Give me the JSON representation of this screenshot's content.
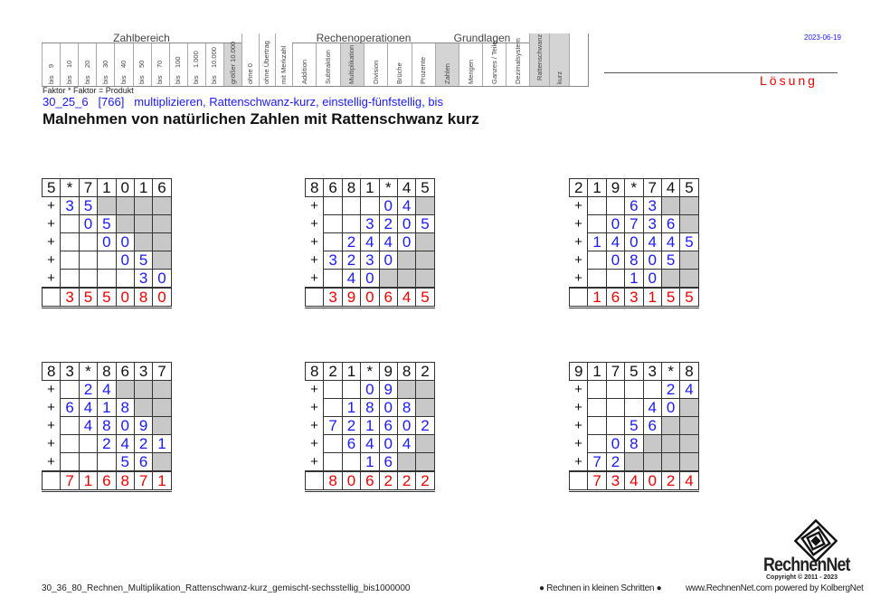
{
  "header": {
    "groups": {
      "zahlbereich": "Zahlbereich",
      "rechenoperationen": "Rechenoperationen",
      "grundlagen": "Grundlagen"
    },
    "zahlbereich": [
      {
        "top": "9",
        "bottom": "bis"
      },
      {
        "top": "10",
        "bottom": "bis"
      },
      {
        "top": "20",
        "bottom": "bis"
      },
      {
        "top": "30",
        "bottom": "bis"
      },
      {
        "top": "40",
        "bottom": "bis"
      },
      {
        "top": "50",
        "bottom": "bis"
      },
      {
        "top": "70",
        "bottom": "bis"
      },
      {
        "top": "100",
        "bottom": "bis"
      },
      {
        "top": "1.000",
        "bottom": "bis"
      },
      {
        "top": "10.000",
        "bottom": "bis"
      },
      {
        "top": "",
        "bottom": "größer 10.000",
        "active": true
      }
    ],
    "extras": [
      "ohne 0",
      "ohne Übertrag",
      "mit Merkzahl"
    ],
    "rechenoperationen": [
      {
        "label": "Addition"
      },
      {
        "label": "Subtraktion"
      },
      {
        "label": "Multiplikation",
        "active": true
      },
      {
        "label": "Division"
      },
      {
        "label": "Brüche"
      },
      {
        "label": "Prozente"
      }
    ],
    "grundlagen": [
      {
        "label": "Zahlen",
        "active": true
      },
      {
        "label": "Mengen"
      },
      {
        "label": "Ganzes / Teile"
      },
      {
        "label": "Dezimalsystem"
      }
    ],
    "special": [
      {
        "label": "Rattenschwanz",
        "active": true
      },
      {
        "label": "kurz",
        "active": true
      },
      {
        "label": ""
      }
    ],
    "formula": "Faktor * Faktor = Produkt",
    "date": "2023-06-19",
    "solution_label": "Lösung"
  },
  "subtitle": "30_25_6   [766]   multiplizieren, Rattenschwanz-kurz, einstellig-fünfstellig, bis",
  "title": "Malnehmen von natürlichen Zahlen mit Rattenschwanz kurz",
  "colors": {
    "blue": "#1a1aff",
    "red": "#e00000",
    "gray": "#c8c8c8"
  },
  "grids": [
    {
      "top": [
        "5",
        "*",
        "7",
        "1",
        "0",
        "1",
        "6"
      ],
      "rows": [
        [
          "3",
          "5",
          "#",
          "#",
          "#",
          "#"
        ],
        [
          "",
          "0",
          "5",
          "#",
          "#",
          "#"
        ],
        [
          "",
          "",
          "0",
          "0",
          "#",
          "#"
        ],
        [
          "",
          "",
          "",
          "0",
          "5",
          "#"
        ],
        [
          "",
          "",
          "",
          "",
          "3",
          "0"
        ]
      ],
      "result": [
        "3",
        "5",
        "5",
        "0",
        "8",
        "0"
      ]
    },
    {
      "top": [
        "8",
        "6",
        "8",
        "1",
        "*",
        "4",
        "5"
      ],
      "rows": [
        [
          "",
          "",
          "",
          "0",
          "4",
          "#"
        ],
        [
          "",
          "",
          "3",
          "2",
          "0",
          "5"
        ],
        [
          "",
          "2",
          "4",
          "4",
          "0",
          "#"
        ],
        [
          "3",
          "2",
          "3",
          "0",
          "#",
          "#"
        ],
        [
          "",
          "4",
          "0",
          "#",
          "#",
          "#"
        ]
      ],
      "result": [
        "3",
        "9",
        "0",
        "6",
        "4",
        "5"
      ]
    },
    {
      "top": [
        "2",
        "1",
        "9",
        "*",
        "7",
        "4",
        "5"
      ],
      "rows": [
        [
          "",
          "",
          "6",
          "3",
          "#",
          "#"
        ],
        [
          "",
          "0",
          "7",
          "3",
          "6",
          "#"
        ],
        [
          "1",
          "4",
          "0",
          "4",
          "4",
          "5"
        ],
        [
          "",
          "0",
          "8",
          "0",
          "5",
          "#"
        ],
        [
          "",
          "",
          "1",
          "0",
          "#",
          "#"
        ]
      ],
      "result": [
        "1",
        "6",
        "3",
        "1",
        "5",
        "5"
      ]
    },
    {
      "top": [
        "8",
        "3",
        "*",
        "8",
        "6",
        "3",
        "7"
      ],
      "rows": [
        [
          "",
          "2",
          "4",
          "#",
          "#",
          "#"
        ],
        [
          "6",
          "4",
          "1",
          "8",
          "#",
          "#"
        ],
        [
          "",
          "4",
          "8",
          "0",
          "9",
          "#"
        ],
        [
          "",
          "",
          "2",
          "4",
          "2",
          "1"
        ],
        [
          "",
          "",
          "",
          "5",
          "6",
          "#"
        ]
      ],
      "result": [
        "7",
        "1",
        "6",
        "8",
        "7",
        "1"
      ]
    },
    {
      "top": [
        "8",
        "2",
        "1",
        "*",
        "9",
        "8",
        "2"
      ],
      "rows": [
        [
          "",
          "",
          "0",
          "9",
          "#",
          "#"
        ],
        [
          "",
          "1",
          "8",
          "0",
          "8",
          "#"
        ],
        [
          "7",
          "2",
          "1",
          "6",
          "0",
          "2"
        ],
        [
          "",
          "6",
          "4",
          "0",
          "4",
          "#"
        ],
        [
          "",
          "",
          "1",
          "6",
          "#",
          "#"
        ]
      ],
      "result": [
        "8",
        "0",
        "6",
        "2",
        "2",
        "2"
      ]
    },
    {
      "top": [
        "9",
        "1",
        "7",
        "5",
        "3",
        "*",
        "8"
      ],
      "rows": [
        [
          "",
          "",
          "",
          "",
          "2",
          "4"
        ],
        [
          "",
          "",
          "",
          "4",
          "0",
          "#"
        ],
        [
          "",
          "",
          "5",
          "6",
          "#",
          "#"
        ],
        [
          "",
          "0",
          "8",
          "#",
          "#",
          "#"
        ],
        [
          "7",
          "2",
          "#",
          "#",
          "#",
          "#"
        ]
      ],
      "result": [
        "7",
        "3",
        "4",
        "0",
        "2",
        "4"
      ]
    }
  ],
  "plus_sign": "+",
  "footer": {
    "filename": "30_36_80_Rechnen_Multiplikation_Rattenschwanz-kurz_gemischt-sechsstellig_bis1000000",
    "slogan": "● Rechnen in kleinen Schritten ●",
    "website": "www.RechnenNet.com powered by KolbergNet",
    "logo_text": "RechnenNet",
    "copyright": "Copyright © 2011 - 2023"
  }
}
